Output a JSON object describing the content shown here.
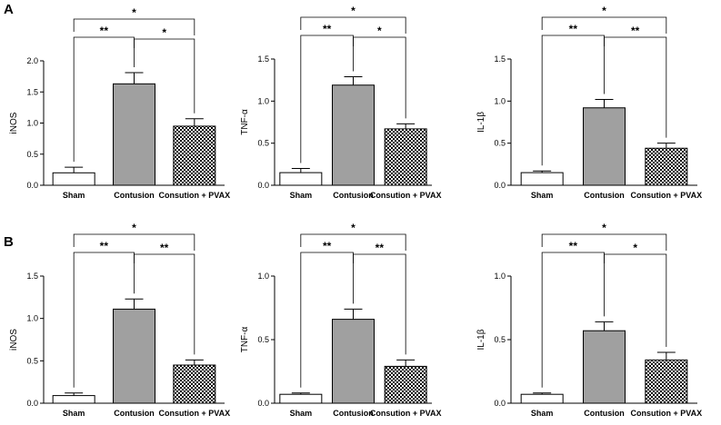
{
  "panels": [
    {
      "letter": "A"
    },
    {
      "letter": "B"
    }
  ],
  "colors": {
    "sham_fill": "#ffffff",
    "contusion_fill": "#a0a0a0",
    "pvax_fill": "checkered",
    "stroke": "#000000"
  },
  "chart_data": [
    {
      "type": "bar",
      "panel": "A",
      "ylabel": "iNOS",
      "categories": [
        "Sham",
        "Contusion",
        "Consution + PVAX"
      ],
      "values": [
        0.2,
        1.63,
        0.95
      ],
      "errors": [
        0.09,
        0.18,
        0.12
      ],
      "ylim": [
        0,
        2.0
      ],
      "yticks": [
        "0.0",
        "0.5",
        "1.0",
        "1.5",
        "2.0"
      ],
      "significance": [
        {
          "from": 0,
          "to": 1,
          "label": "**"
        },
        {
          "from": 1,
          "to": 2,
          "label": "*"
        },
        {
          "from": 0,
          "to": 2,
          "label": "*"
        }
      ]
    },
    {
      "type": "bar",
      "panel": "A",
      "ylabel": "TNF-α",
      "categories": [
        "Sham",
        "Contusion",
        "Consution + PVAX"
      ],
      "values": [
        0.15,
        1.19,
        0.67
      ],
      "errors": [
        0.05,
        0.1,
        0.06
      ],
      "ylim": [
        0,
        1.5
      ],
      "yticks": [
        "0.0",
        "0.5",
        "1.0",
        "1.5"
      ],
      "significance": [
        {
          "from": 0,
          "to": 1,
          "label": "**"
        },
        {
          "from": 1,
          "to": 2,
          "label": "*"
        },
        {
          "from": 0,
          "to": 2,
          "label": "*"
        }
      ]
    },
    {
      "type": "bar",
      "panel": "A",
      "ylabel": "IL-1β",
      "categories": [
        "Sham",
        "Contusion",
        "Consution + PVAX"
      ],
      "values": [
        0.15,
        0.92,
        0.44
      ],
      "errors": [
        0.02,
        0.1,
        0.06
      ],
      "ylim": [
        0,
        1.5
      ],
      "yticks": [
        "0.0",
        "0.5",
        "1.0",
        "1.5"
      ],
      "significance": [
        {
          "from": 0,
          "to": 1,
          "label": "**"
        },
        {
          "from": 1,
          "to": 2,
          "label": "**"
        },
        {
          "from": 0,
          "to": 2,
          "label": "*"
        }
      ]
    },
    {
      "type": "bar",
      "panel": "B",
      "ylabel": "iNOS",
      "categories": [
        "Sham",
        "Contusion",
        "Consution + PVAX"
      ],
      "values": [
        0.09,
        1.11,
        0.45
      ],
      "errors": [
        0.03,
        0.12,
        0.06
      ],
      "ylim": [
        0,
        1.5
      ],
      "yticks": [
        "0.0",
        "0.5",
        "1.0",
        "1.5"
      ],
      "significance": [
        {
          "from": 0,
          "to": 1,
          "label": "**"
        },
        {
          "from": 1,
          "to": 2,
          "label": "**"
        },
        {
          "from": 0,
          "to": 2,
          "label": "*"
        }
      ]
    },
    {
      "type": "bar",
      "panel": "B",
      "ylabel": "TNF-α",
      "categories": [
        "Sham",
        "Contusion",
        "Consution + PVAX"
      ],
      "values": [
        0.07,
        0.66,
        0.29
      ],
      "errors": [
        0.01,
        0.08,
        0.05
      ],
      "ylim": [
        0,
        1.0
      ],
      "yticks": [
        "0.0",
        "0.5",
        "1.0"
      ],
      "significance": [
        {
          "from": 0,
          "to": 1,
          "label": "**"
        },
        {
          "from": 1,
          "to": 2,
          "label": "**"
        },
        {
          "from": 0,
          "to": 2,
          "label": "*"
        }
      ]
    },
    {
      "type": "bar",
      "panel": "B",
      "ylabel": "IL-1β",
      "categories": [
        "Sham",
        "Contusion",
        "Consution + PVAX"
      ],
      "values": [
        0.07,
        0.57,
        0.34
      ],
      "errors": [
        0.01,
        0.07,
        0.06
      ],
      "ylim": [
        0,
        1.0
      ],
      "yticks": [
        "0.0",
        "0.5",
        "1.0"
      ],
      "significance": [
        {
          "from": 0,
          "to": 1,
          "label": "**"
        },
        {
          "from": 1,
          "to": 2,
          "label": "*"
        },
        {
          "from": 0,
          "to": 2,
          "label": "*"
        }
      ]
    }
  ]
}
